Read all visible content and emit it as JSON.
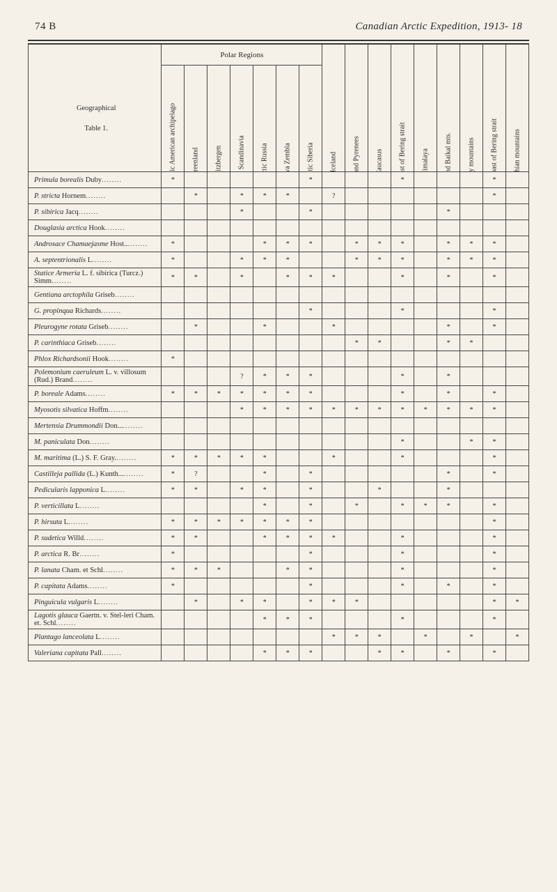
{
  "header": {
    "page_number": "74 B",
    "title": "Canadian Arctic Expedition, 1913- 18"
  },
  "table": {
    "corner_label_line1": "Geographical",
    "corner_label_line2": "Table 1.",
    "group_header": "Polar Regions",
    "columns": [
      "Islands of the arctic American archipelago",
      "Greenland",
      "Spitzbergen",
      "Arctic Scandinavia",
      "Arctic Russia",
      "Nova Zembla",
      "Arctic Siberia",
      "Iceland",
      "Alps and Pyrenees",
      "Caucasus",
      "Asiatic coast of Bering strait",
      "Himalaya",
      "Altai and Baikal mts.",
      "Rocky mountains",
      "American coast of Bering strait",
      "Appalachian mountains"
    ],
    "rows": [
      {
        "label_italic": "Primula borealis",
        "label_rest": " Duby",
        "cells": [
          "*",
          "",
          "",
          "",
          "",
          "",
          "*",
          "",
          "",
          "",
          "*",
          "",
          "",
          "",
          "*",
          ""
        ]
      },
      {
        "label_italic": "P. stricta",
        "label_rest": " Hornem",
        "cells": [
          "",
          "*",
          "",
          "*",
          "*",
          "*",
          "",
          "?",
          "",
          "",
          "",
          "",
          "",
          "",
          "*",
          ""
        ]
      },
      {
        "label_italic": "P. sibirica",
        "label_rest": " Jacq",
        "cells": [
          "",
          "",
          "",
          "*",
          "",
          "",
          "*",
          "",
          "",
          "",
          "",
          "",
          "*",
          "",
          "",
          ""
        ]
      },
      {
        "label_italic": "Douglasia arctica",
        "label_rest": " Hook",
        "cells": [
          "",
          "",
          "",
          "",
          "",
          "",
          "",
          "",
          "",
          "",
          "",
          "",
          "",
          "",
          "",
          ""
        ]
      },
      {
        "label_italic": "Androsace Chamaejasme",
        "label_rest": " Host..",
        "cells": [
          "*",
          "",
          "",
          "",
          "*",
          "*",
          "*",
          "",
          "*",
          "*",
          "*",
          "",
          "*",
          "*",
          "*",
          ""
        ]
      },
      {
        "label_italic": "A. septentrionalis",
        "label_rest": " L",
        "cells": [
          "*",
          "",
          "",
          "*",
          "*",
          "*",
          "",
          "",
          "*",
          "*",
          "*",
          "",
          "*",
          "*",
          "*",
          ""
        ]
      },
      {
        "label_italic": "Statice Armeria",
        "label_rest": " L. f. sibirica (Turcz.) Simm",
        "cells": [
          "*",
          "*",
          "",
          "*",
          "",
          "*",
          "*",
          "*",
          "",
          "",
          "*",
          "",
          "*",
          "",
          "*",
          ""
        ]
      },
      {
        "label_italic": "Gentiana arctophila",
        "label_rest": " Griseb",
        "cells": [
          "",
          "",
          "",
          "",
          "",
          "",
          "",
          "",
          "",
          "",
          "",
          "",
          "",
          "",
          "",
          ""
        ]
      },
      {
        "label_italic": "G. propinqua",
        "label_rest": " Richards",
        "cells": [
          "",
          "",
          "",
          "",
          "",
          "",
          "*",
          "",
          "",
          "",
          "*",
          "",
          "",
          "",
          "*",
          ""
        ]
      },
      {
        "label_italic": "Pleurogyne rotata",
        "label_rest": " Griseb",
        "cells": [
          "",
          "*",
          "",
          "",
          "*",
          "",
          "",
          "*",
          "",
          "",
          "",
          "",
          "*",
          "",
          "*",
          ""
        ]
      },
      {
        "label_italic": "P. carinthiaca",
        "label_rest": " Griseb",
        "cells": [
          "",
          "",
          "",
          "",
          "",
          "",
          "",
          "",
          "*",
          "*",
          "",
          "",
          "*",
          "*",
          "",
          ""
        ]
      },
      {
        "label_italic": "Phlox Richardsonii",
        "label_rest": " Hook",
        "cells": [
          "*",
          "",
          "",
          "",
          "",
          "",
          "",
          "",
          "",
          "",
          "",
          "",
          "",
          "",
          "",
          ""
        ]
      },
      {
        "label_italic": "Polemonium caeruleum",
        "label_rest": " L. v. villosum (Rud.) Brand",
        "cells": [
          "",
          "",
          "",
          "?",
          "*",
          "*",
          "*",
          "",
          "",
          "",
          "*",
          "",
          "*",
          "",
          "",
          ""
        ]
      },
      {
        "label_italic": "P. boreale",
        "label_rest": " Adams",
        "cells": [
          "*",
          "*",
          "*",
          "*",
          "*",
          "*",
          "*",
          "",
          "",
          "",
          "*",
          "",
          "*",
          "",
          "*",
          ""
        ]
      },
      {
        "label_italic": "Myosotis silvatica",
        "label_rest": " Hoffm",
        "cells": [
          "",
          "",
          "",
          "*",
          "*",
          "*",
          "*",
          "*",
          "*",
          "*",
          "*",
          "*",
          "*",
          "*",
          "*",
          ""
        ]
      },
      {
        "label_italic": "Mertensia Drummondii",
        "label_rest": " Don...",
        "cells": [
          "",
          "",
          "",
          "",
          "",
          "",
          "",
          "",
          "",
          "",
          "",
          "",
          "",
          "",
          "",
          ""
        ]
      },
      {
        "label_italic": "M. paniculata",
        "label_rest": " Don",
        "cells": [
          "",
          "",
          "",
          "",
          "",
          "",
          "",
          "",
          "",
          "",
          "*",
          "",
          "",
          "*",
          "*",
          ""
        ]
      },
      {
        "label_italic": "M. maritima",
        "label_rest": " (L.) S. F. Gray.",
        "cells": [
          "*",
          "*",
          "*",
          "*",
          "*",
          "",
          "",
          "*",
          "",
          "",
          "*",
          "",
          "",
          "",
          "*",
          ""
        ]
      },
      {
        "label_italic": "Castilleja pallida",
        "label_rest": " (L.) Kunth...",
        "cells": [
          "*",
          "?",
          "",
          "",
          "*",
          "",
          "*",
          "",
          "",
          "",
          "",
          "",
          "*",
          "",
          "*",
          ""
        ]
      },
      {
        "label_italic": "Pedicularis lapponica",
        "label_rest": " L",
        "cells": [
          "*",
          "*",
          "",
          "*",
          "*",
          "",
          "*",
          "",
          "",
          "*",
          "",
          "",
          "*",
          "",
          "",
          ""
        ]
      },
      {
        "label_italic": "P. verticillata",
        "label_rest": " L",
        "cells": [
          "",
          "",
          "",
          "",
          "*",
          "",
          "*",
          "",
          "*",
          "",
          "*",
          "*",
          "*",
          "",
          "*",
          ""
        ]
      },
      {
        "label_italic": "P. hirsuta",
        "label_rest": " L",
        "cells": [
          "*",
          "*",
          "*",
          "*",
          "*",
          "*",
          "*",
          "",
          "",
          "",
          "",
          "",
          "",
          "",
          "*",
          ""
        ]
      },
      {
        "label_italic": "P. sudetica",
        "label_rest": " Willd",
        "cells": [
          "*",
          "*",
          "",
          "",
          "*",
          "*",
          "*",
          "*",
          "",
          "",
          "*",
          "",
          "",
          "",
          "*",
          ""
        ]
      },
      {
        "label_italic": "P. arctica",
        "label_rest": " R. Br",
        "cells": [
          "*",
          "",
          "",
          "",
          "",
          "",
          "*",
          "",
          "",
          "",
          "*",
          "",
          "",
          "",
          "*",
          ""
        ]
      },
      {
        "label_italic": "P. lanata",
        "label_rest": " Cham. et Schl",
        "cells": [
          "*",
          "*",
          "*",
          "",
          "",
          "*",
          "*",
          "",
          "",
          "",
          "*",
          "",
          "",
          "",
          "*",
          ""
        ]
      },
      {
        "label_italic": "P. capitata",
        "label_rest": " Adams",
        "cells": [
          "*",
          "",
          "",
          "",
          "",
          "",
          "*",
          "",
          "",
          "",
          "*",
          "",
          "*",
          "",
          "*",
          ""
        ]
      },
      {
        "label_italic": "Pinguicula vulgaris",
        "label_rest": " L",
        "cells": [
          "",
          "*",
          "",
          "*",
          "*",
          "",
          "*",
          "*",
          "*",
          "",
          "",
          "",
          "",
          "",
          "*",
          "*"
        ]
      },
      {
        "label_italic": "Lagotis glauca",
        "label_rest": " Gaertn. v. Stel-leri Cham. et. Schl",
        "cells": [
          "",
          "",
          "",
          "",
          "*",
          "*",
          "*",
          "",
          "",
          "",
          "*",
          "",
          "",
          "",
          "*",
          ""
        ]
      },
      {
        "label_italic": "Plantago lanceolata",
        "label_rest": " L",
        "cells": [
          "",
          "",
          "",
          "",
          "",
          "",
          "",
          "*",
          "*",
          "*",
          "",
          "*",
          "",
          "*",
          "",
          "*"
        ]
      },
      {
        "label_italic": "Valeriana capitata",
        "label_rest": " Pall",
        "cells": [
          "",
          "",
          "",
          "",
          "*",
          "*",
          "*",
          "",
          "",
          "*",
          "*",
          "",
          "*",
          "",
          "*",
          ""
        ]
      }
    ]
  },
  "colors": {
    "page_bg": "#f5f1e8",
    "text": "#2a2a2a",
    "border": "#444444"
  }
}
